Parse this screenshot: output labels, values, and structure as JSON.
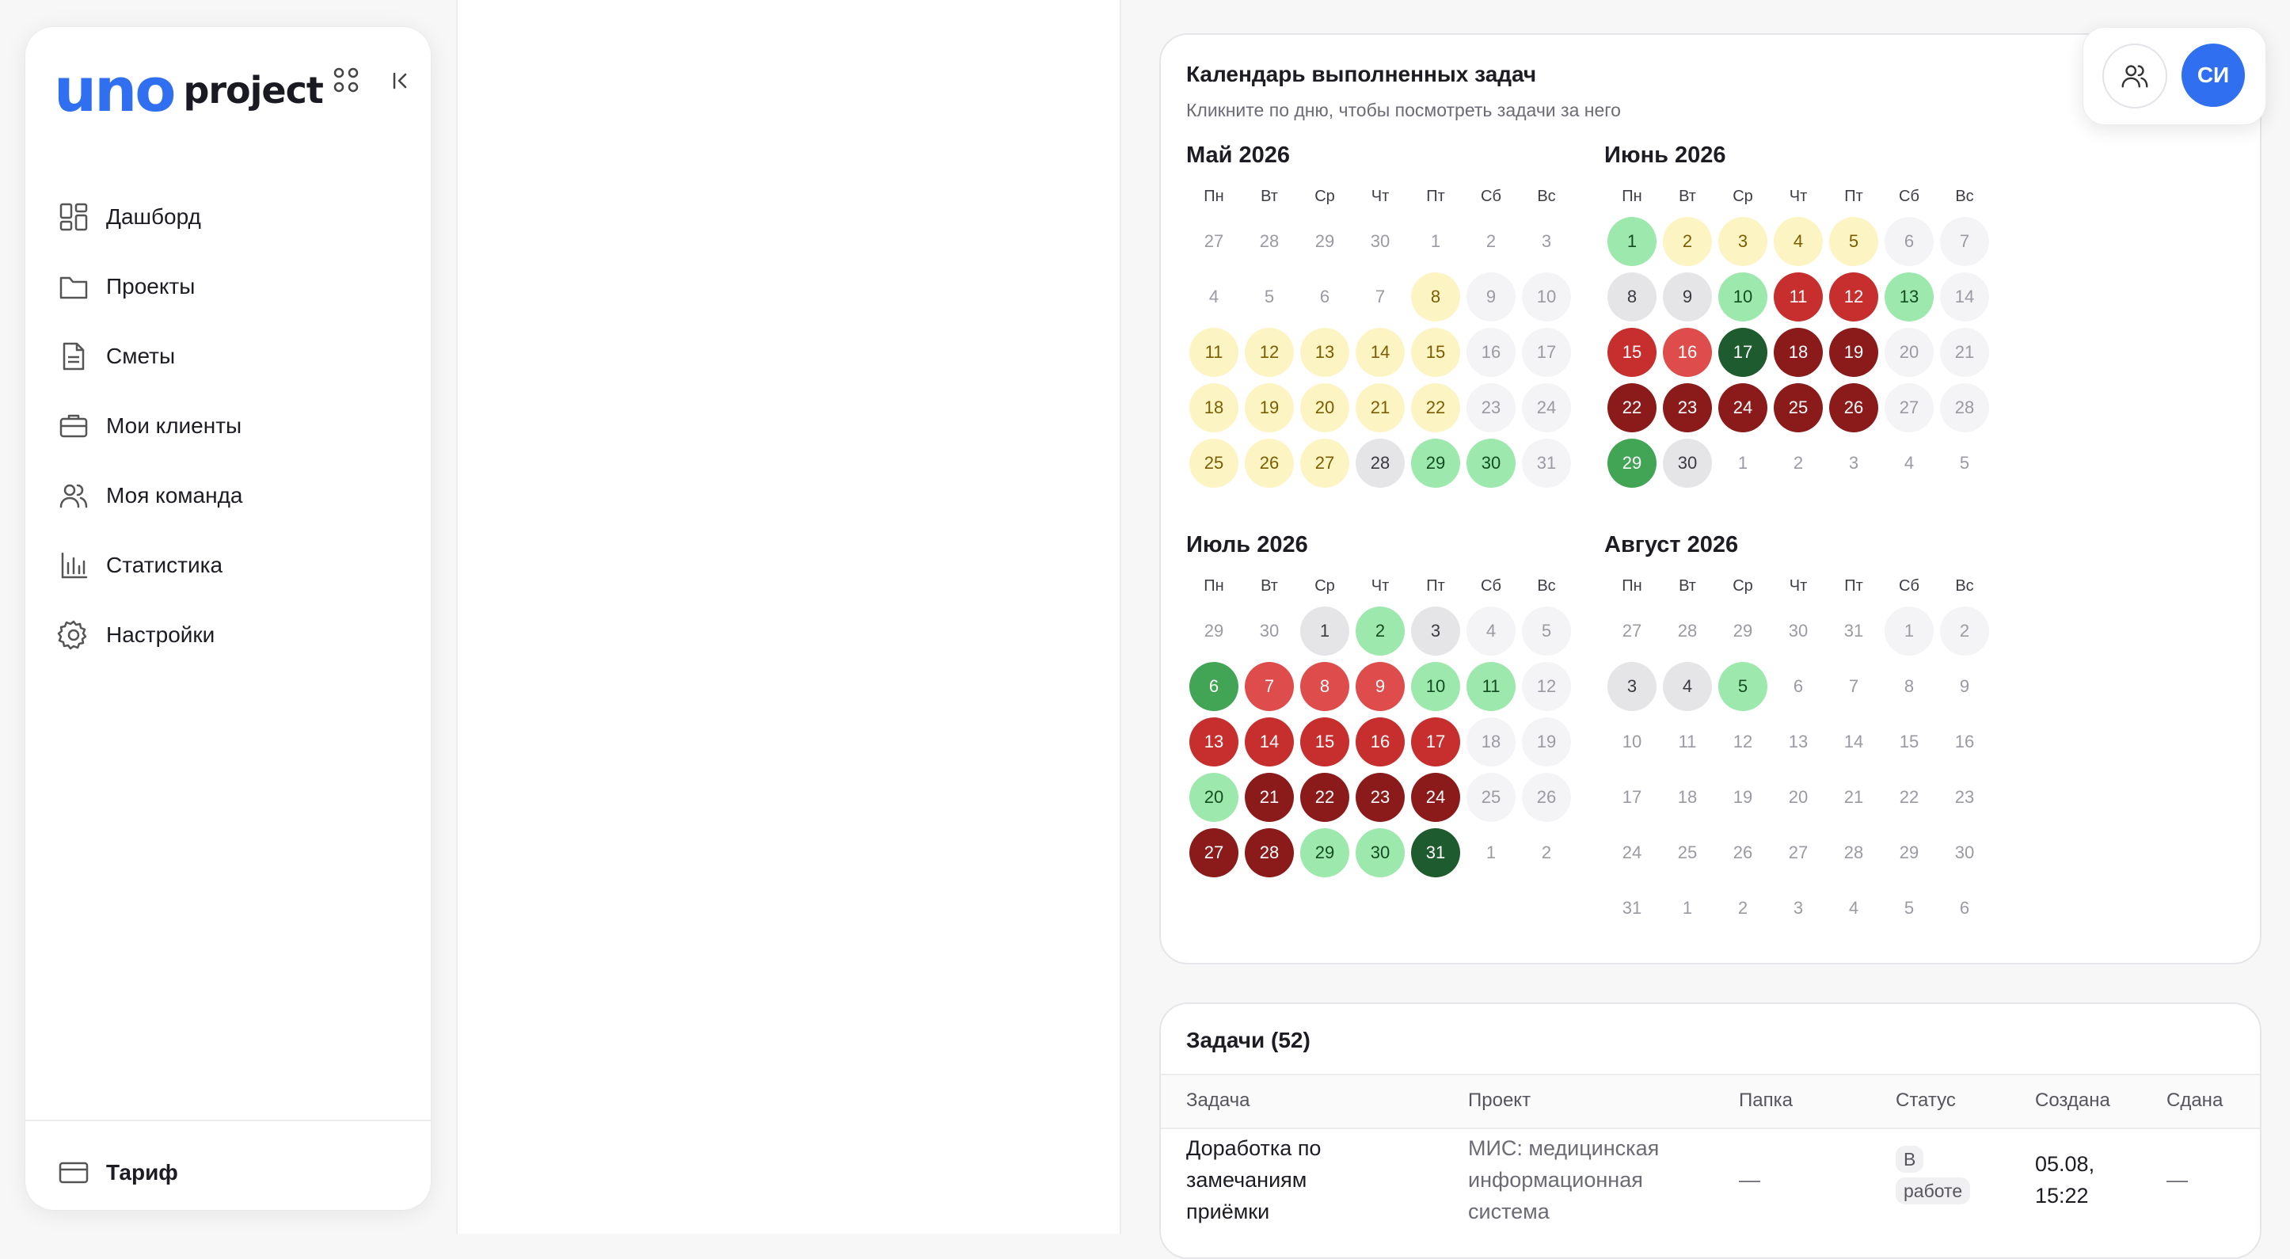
{
  "sidebar": {
    "logo": {
      "uno": "uno",
      "project": "project"
    },
    "nav": [
      {
        "label": "Дашборд",
        "icon": "dashboard-icon"
      },
      {
        "label": "Проекты",
        "icon": "folder-icon"
      },
      {
        "label": "Сметы",
        "icon": "document-icon"
      },
      {
        "label": "Мои клиенты",
        "icon": "briefcase-icon"
      },
      {
        "label": "Моя команда",
        "icon": "team-icon"
      },
      {
        "label": "Статистика",
        "icon": "chart-icon"
      },
      {
        "label": "Настройки",
        "icon": "gear-icon"
      }
    ],
    "tarif": {
      "label": "Тариф",
      "icon": "card-icon"
    }
  },
  "header": {
    "avatar_initials": "СИ"
  },
  "calendar": {
    "title": "Календарь выполненных задач",
    "subtitle": "Кликните по дню, чтобы посмотреть задачи за него",
    "weekdays": [
      "Пн",
      "Вт",
      "Ср",
      "Чт",
      "Пт",
      "Сб",
      "Вс"
    ],
    "colors": {
      "yellow": "#fdf4c4",
      "light_green": "#9de8ad",
      "green": "#42a455",
      "dark_green": "#1e5b2e",
      "light_red": "#df4c4c",
      "red": "#c72e2e",
      "dark_red": "#8b1a1a",
      "grey": "#e5e5e8",
      "none": "#f4f4f6"
    },
    "months": [
      {
        "title": "Май 2026",
        "days": [
          [
            27,
            "out"
          ],
          [
            28,
            "out"
          ],
          [
            29,
            "out"
          ],
          [
            30,
            "out"
          ],
          [
            1,
            "out"
          ],
          [
            2,
            "out"
          ],
          [
            3,
            "out"
          ],
          [
            4,
            "out"
          ],
          [
            5,
            "out"
          ],
          [
            6,
            "out"
          ],
          [
            7,
            "out"
          ],
          [
            8,
            "yellow"
          ],
          [
            9,
            "none"
          ],
          [
            10,
            "none"
          ],
          [
            11,
            "yellow"
          ],
          [
            12,
            "yellow"
          ],
          [
            13,
            "yellow"
          ],
          [
            14,
            "yellow"
          ],
          [
            15,
            "yellow"
          ],
          [
            16,
            "none"
          ],
          [
            17,
            "none"
          ],
          [
            18,
            "yellow"
          ],
          [
            19,
            "yellow"
          ],
          [
            20,
            "yellow"
          ],
          [
            21,
            "yellow"
          ],
          [
            22,
            "yellow"
          ],
          [
            23,
            "none"
          ],
          [
            24,
            "none"
          ],
          [
            25,
            "yellow"
          ],
          [
            26,
            "yellow"
          ],
          [
            27,
            "yellow"
          ],
          [
            28,
            "grey"
          ],
          [
            29,
            "lgreen"
          ],
          [
            30,
            "lgreen"
          ],
          [
            31,
            "none"
          ]
        ]
      },
      {
        "title": "Июнь 2026",
        "days": [
          [
            1,
            "lgreen"
          ],
          [
            2,
            "yellow"
          ],
          [
            3,
            "yellow"
          ],
          [
            4,
            "yellow"
          ],
          [
            5,
            "yellow"
          ],
          [
            6,
            "none"
          ],
          [
            7,
            "none"
          ],
          [
            8,
            "grey"
          ],
          [
            9,
            "grey"
          ],
          [
            10,
            "lgreen"
          ],
          [
            11,
            "red"
          ],
          [
            12,
            "red"
          ],
          [
            13,
            "lgreen"
          ],
          [
            14,
            "none"
          ],
          [
            15,
            "red"
          ],
          [
            16,
            "lred"
          ],
          [
            17,
            "dgreen"
          ],
          [
            18,
            "dred"
          ],
          [
            19,
            "dred"
          ],
          [
            20,
            "none"
          ],
          [
            21,
            "none"
          ],
          [
            22,
            "dred"
          ],
          [
            23,
            "dred"
          ],
          [
            24,
            "dred"
          ],
          [
            25,
            "dred"
          ],
          [
            26,
            "dred"
          ],
          [
            27,
            "none"
          ],
          [
            28,
            "none"
          ],
          [
            29,
            "green"
          ],
          [
            30,
            "grey"
          ],
          [
            1,
            "out"
          ],
          [
            2,
            "out"
          ],
          [
            3,
            "out"
          ],
          [
            4,
            "out"
          ],
          [
            5,
            "out"
          ]
        ]
      },
      {
        "title": "Июль 2026",
        "days": [
          [
            29,
            "out"
          ],
          [
            30,
            "out"
          ],
          [
            1,
            "grey"
          ],
          [
            2,
            "lgreen"
          ],
          [
            3,
            "grey"
          ],
          [
            4,
            "none"
          ],
          [
            5,
            "none"
          ],
          [
            6,
            "green"
          ],
          [
            7,
            "lred"
          ],
          [
            8,
            "lred"
          ],
          [
            9,
            "lred"
          ],
          [
            10,
            "lgreen"
          ],
          [
            11,
            "lgreen"
          ],
          [
            12,
            "none"
          ],
          [
            13,
            "red"
          ],
          [
            14,
            "red"
          ],
          [
            15,
            "red"
          ],
          [
            16,
            "red"
          ],
          [
            17,
            "red"
          ],
          [
            18,
            "none"
          ],
          [
            19,
            "none"
          ],
          [
            20,
            "lgreen"
          ],
          [
            21,
            "dred"
          ],
          [
            22,
            "dred"
          ],
          [
            23,
            "dred"
          ],
          [
            24,
            "dred"
          ],
          [
            25,
            "none"
          ],
          [
            26,
            "none"
          ],
          [
            27,
            "dred"
          ],
          [
            28,
            "dred"
          ],
          [
            29,
            "lgreen"
          ],
          [
            30,
            "lgreen"
          ],
          [
            31,
            "dgreen"
          ],
          [
            1,
            "out"
          ],
          [
            2,
            "out"
          ]
        ]
      },
      {
        "title": "Август 2026",
        "days": [
          [
            27,
            "out"
          ],
          [
            28,
            "out"
          ],
          [
            29,
            "out"
          ],
          [
            30,
            "out"
          ],
          [
            31,
            "out"
          ],
          [
            1,
            "none"
          ],
          [
            2,
            "none"
          ],
          [
            3,
            "grey"
          ],
          [
            4,
            "grey"
          ],
          [
            5,
            "lgreen"
          ],
          [
            6,
            "out"
          ],
          [
            7,
            "out"
          ],
          [
            8,
            "out"
          ],
          [
            9,
            "out"
          ],
          [
            10,
            "out"
          ],
          [
            11,
            "out"
          ],
          [
            12,
            "out"
          ],
          [
            13,
            "out"
          ],
          [
            14,
            "out"
          ],
          [
            15,
            "out"
          ],
          [
            16,
            "out"
          ],
          [
            17,
            "out"
          ],
          [
            18,
            "out"
          ],
          [
            19,
            "out"
          ],
          [
            20,
            "out"
          ],
          [
            21,
            "out"
          ],
          [
            22,
            "out"
          ],
          [
            23,
            "out"
          ],
          [
            24,
            "out"
          ],
          [
            25,
            "out"
          ],
          [
            26,
            "out"
          ],
          [
            27,
            "out"
          ],
          [
            28,
            "out"
          ],
          [
            29,
            "out"
          ],
          [
            30,
            "out"
          ],
          [
            31,
            "out"
          ],
          [
            1,
            "out"
          ],
          [
            2,
            "out"
          ],
          [
            3,
            "out"
          ],
          [
            4,
            "out"
          ],
          [
            5,
            "out"
          ],
          [
            6,
            "out"
          ]
        ]
      }
    ]
  },
  "tasks": {
    "title": "Задачи (52)",
    "columns": [
      "Задача",
      "Проект",
      "Папка",
      "Статус",
      "Создана",
      "Сдана"
    ],
    "rows": [
      {
        "task": [
          "Доработка по",
          "замечаниям",
          "приёмки"
        ],
        "project": [
          "МИС: медицинская",
          "информационная",
          "система"
        ],
        "folder": "—",
        "status": "В работе",
        "created": [
          "05.08,",
          "15:22"
        ],
        "done": "—"
      }
    ]
  }
}
